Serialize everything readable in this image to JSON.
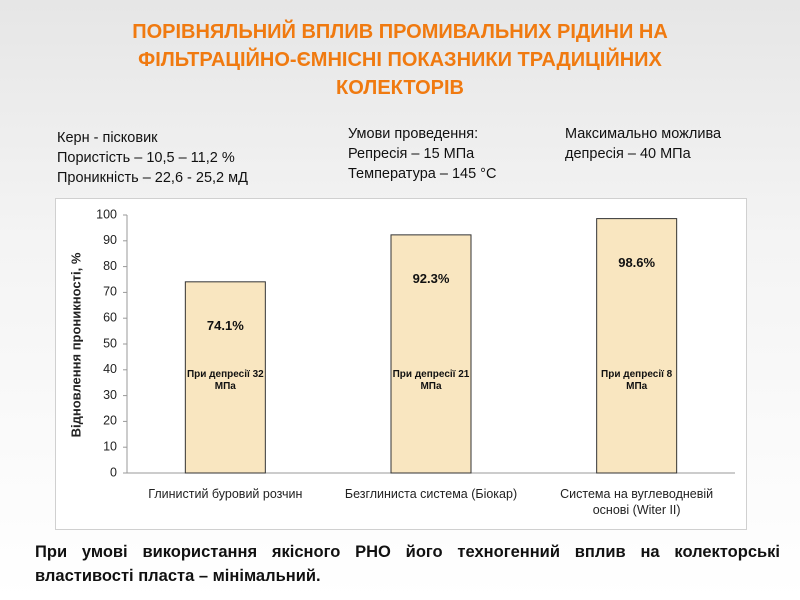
{
  "title_lines": [
    "ПОРІВНЯЛЬНИЙ ВПЛИВ ПРОМИВАЛЬНИХ РІДИНИ НА",
    "ФІЛЬТРАЦІЙНО-ЄМНІСНІ ПОКАЗНИКИ ТРАДИЦІЙНИХ",
    "КОЛЕКТОРІВ"
  ],
  "info_left": [
    "Керн - пісковик",
    "Пористість – 10,5 – 11,2 %",
    "Проникність – 22,6 - 25,2 мД"
  ],
  "info_middle": [
    "Умови проведення:",
    "Репресія – 15 МПа",
    "Температура – 145 °C"
  ],
  "info_right": "Максимально можлива депресія – 40 МПа",
  "chart_data": {
    "type": "bar",
    "y_label": "Відновлення проникності, %",
    "categories": [
      "Глинистий буровий розчин",
      "Безглиниста система (Біокар)",
      "Система на вуглеводневій основі (Witer II)"
    ],
    "values": [
      74.1,
      92.3,
      98.6
    ],
    "value_labels": [
      "74.1%",
      "92.3%",
      "98.6%"
    ],
    "annotations": [
      "При депресії 32 МПа",
      "При депресії 21 МПа",
      "При депресії 8 МПа"
    ],
    "color": "#f9e6c0",
    "ylim": [
      0,
      100
    ],
    "yticks": [
      0,
      10,
      20,
      30,
      40,
      50,
      60,
      70,
      80,
      90,
      100
    ]
  },
  "conclusion": "При умові використання якісного РНО його техногенний вплив на колекторські властивості пласта – мінімальний."
}
